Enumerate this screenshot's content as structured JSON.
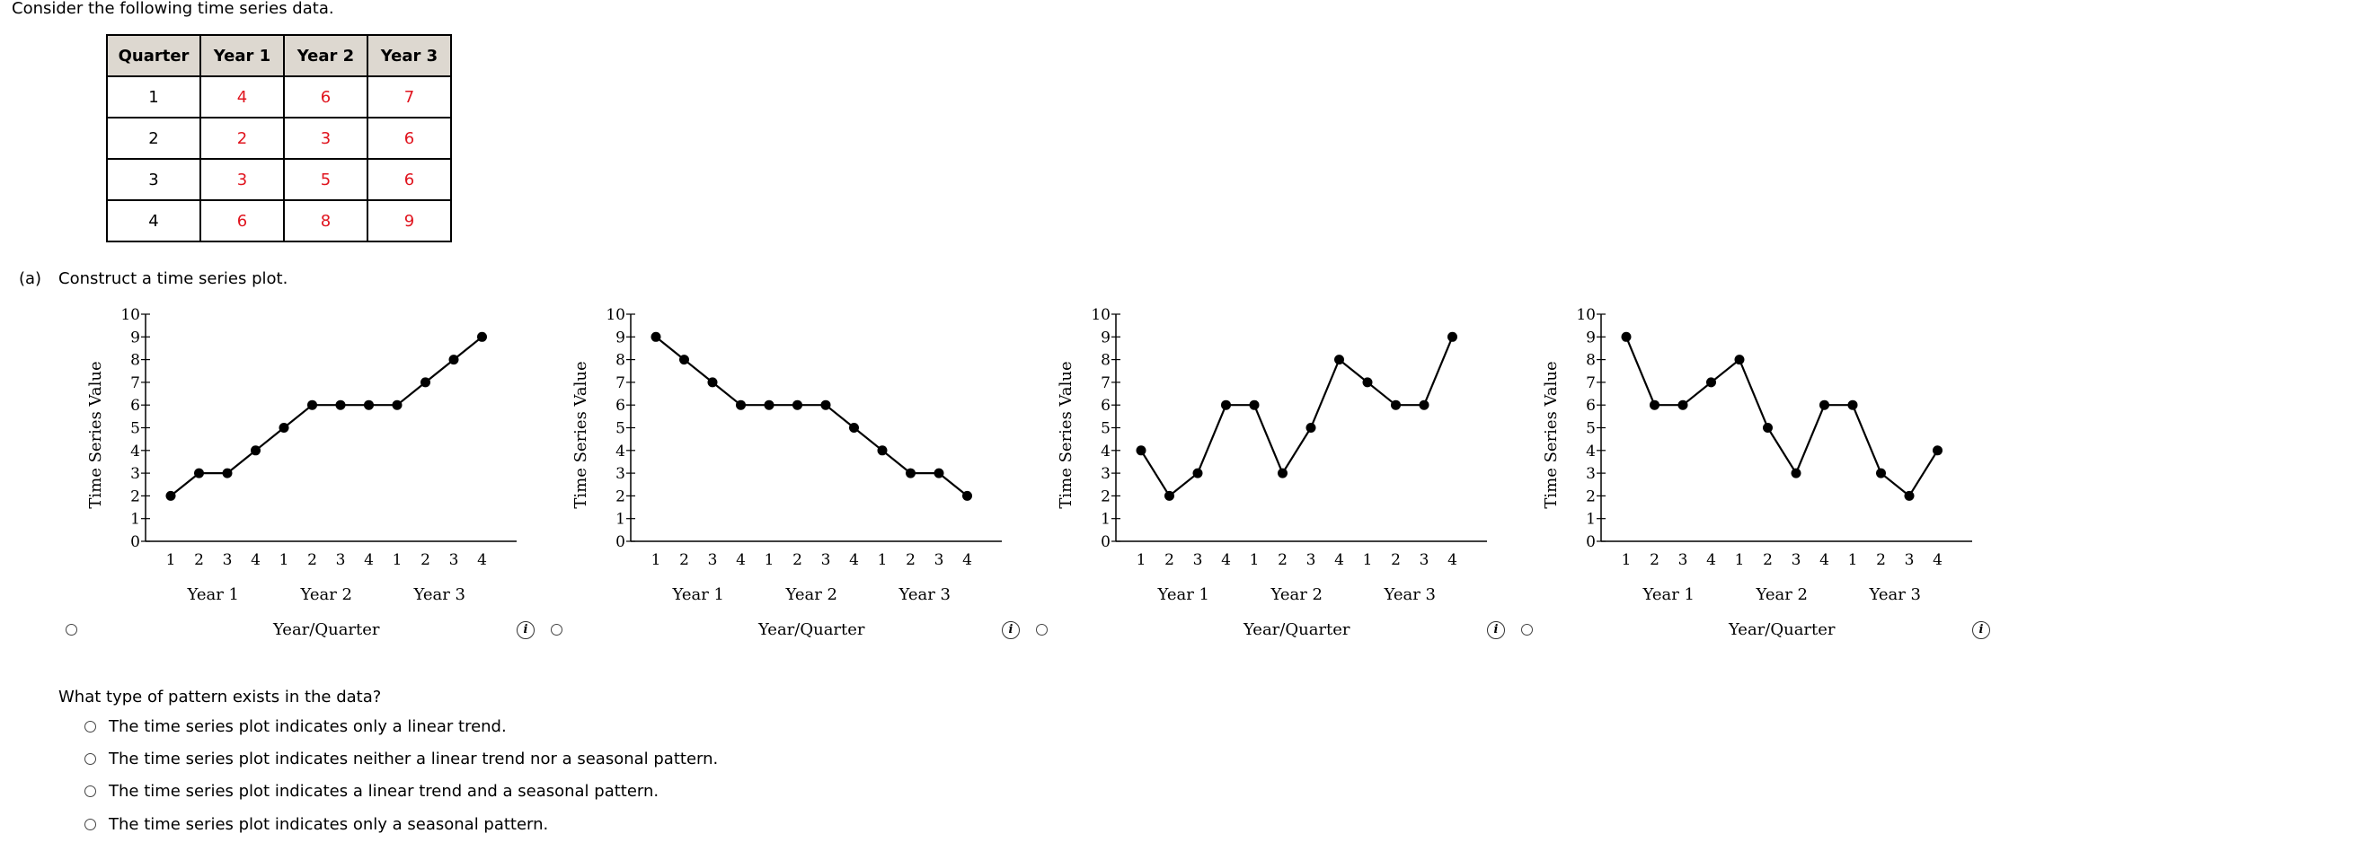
{
  "intro": "Consider the following time series data.",
  "table": {
    "headers": [
      "Quarter",
      "Year 1",
      "Year 2",
      "Year 3"
    ],
    "rows": [
      [
        "1",
        "4",
        "6",
        "7"
      ],
      [
        "2",
        "2",
        "3",
        "6"
      ],
      [
        "3",
        "3",
        "5",
        "6"
      ],
      [
        "4",
        "6",
        "8",
        "9"
      ]
    ]
  },
  "part_a": {
    "label": "(a)",
    "text": "Construct a time series plot."
  },
  "info_glyph": "i",
  "chart_data": [
    {
      "type": "line",
      "ylabel": "Time Series Value",
      "xlabel": "Year/Quarter",
      "ylim": [
        0,
        10
      ],
      "yticks": [
        "0",
        "1",
        "2",
        "3",
        "4",
        "5",
        "6",
        "7",
        "8",
        "9",
        "10"
      ],
      "quarter_ticks": [
        "1",
        "2",
        "3",
        "4",
        "1",
        "2",
        "3",
        "4",
        "1",
        "2",
        "3",
        "4"
      ],
      "year_labels": [
        "Year 1",
        "Year 2",
        "Year 3"
      ],
      "values": [
        2,
        3,
        3,
        4,
        5,
        6,
        6,
        6,
        6,
        7,
        8,
        9
      ]
    },
    {
      "type": "line",
      "ylabel": "Time Series Value",
      "xlabel": "Year/Quarter",
      "ylim": [
        0,
        10
      ],
      "yticks": [
        "0",
        "1",
        "2",
        "3",
        "4",
        "5",
        "6",
        "7",
        "8",
        "9",
        "10"
      ],
      "quarter_ticks": [
        "1",
        "2",
        "3",
        "4",
        "1",
        "2",
        "3",
        "4",
        "1",
        "2",
        "3",
        "4"
      ],
      "year_labels": [
        "Year 1",
        "Year 2",
        "Year 3"
      ],
      "values": [
        9,
        8,
        7,
        6,
        6,
        6,
        6,
        5,
        4,
        3,
        3,
        2
      ]
    },
    {
      "type": "line",
      "ylabel": "Time Series Value",
      "xlabel": "Year/Quarter",
      "ylim": [
        0,
        10
      ],
      "yticks": [
        "0",
        "1",
        "2",
        "3",
        "4",
        "5",
        "6",
        "7",
        "8",
        "9",
        "10"
      ],
      "quarter_ticks": [
        "1",
        "2",
        "3",
        "4",
        "1",
        "2",
        "3",
        "4",
        "1",
        "2",
        "3",
        "4"
      ],
      "year_labels": [
        "Year 1",
        "Year 2",
        "Year 3"
      ],
      "values": [
        4,
        2,
        3,
        6,
        6,
        3,
        5,
        8,
        7,
        6,
        6,
        9
      ]
    },
    {
      "type": "line",
      "ylabel": "Time Series Value",
      "xlabel": "Year/Quarter",
      "ylim": [
        0,
        10
      ],
      "yticks": [
        "0",
        "1",
        "2",
        "3",
        "4",
        "5",
        "6",
        "7",
        "8",
        "9",
        "10"
      ],
      "quarter_ticks": [
        "1",
        "2",
        "3",
        "4",
        "1",
        "2",
        "3",
        "4",
        "1",
        "2",
        "3",
        "4"
      ],
      "year_labels": [
        "Year 1",
        "Year 2",
        "Year 3"
      ],
      "values": [
        9,
        6,
        6,
        7,
        8,
        5,
        3,
        6,
        6,
        3,
        2,
        4
      ]
    }
  ],
  "question": {
    "prompt": "What type of pattern exists in the data?",
    "options": [
      "The time series plot indicates only a linear trend.",
      "The time series plot indicates neither a linear trend nor a seasonal pattern.",
      "The time series plot indicates a linear trend and a seasonal pattern.",
      "The time series plot indicates only a seasonal pattern."
    ]
  }
}
